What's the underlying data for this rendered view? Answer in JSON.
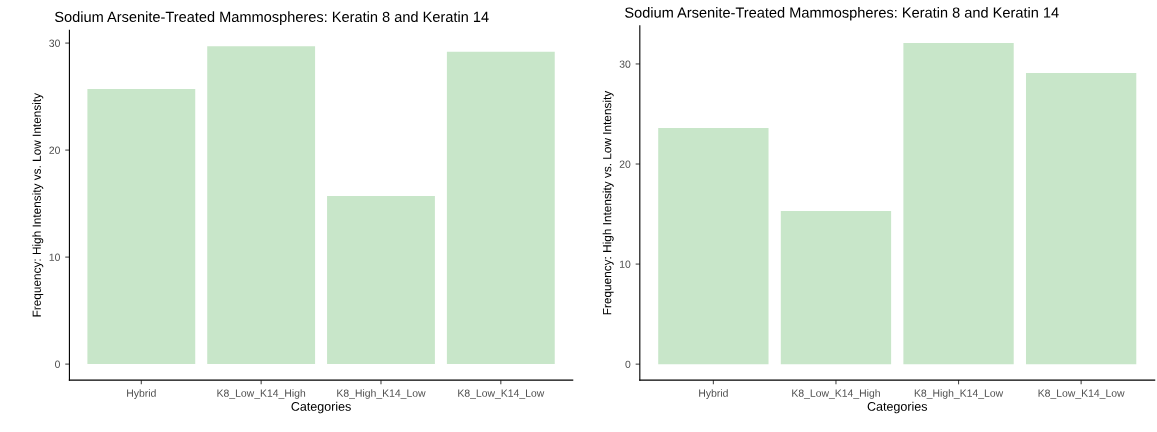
{
  "chart_data": [
    {
      "type": "bar",
      "title": "Sodium Arsenite-Treated Mammospheres: Keratin 8 and Keratin 14",
      "xlabel": "Categories",
      "ylabel": "Frequency: High Intensity vs. Low Intensity",
      "categories": [
        "Hybrid",
        "K8_Low_K14_High",
        "K8_High_K14_Low",
        "K8_Low_K14_Low"
      ],
      "values": [
        25.7,
        29.7,
        15.7,
        29.2
      ],
      "color": "#c8e6c9",
      "ylim": [
        -1.5,
        31.2
      ],
      "yticks": [
        0,
        10,
        20,
        30
      ],
      "grid": false,
      "legend": false
    },
    {
      "type": "bar",
      "title": "Sodium Arsenite-Treated Mammospheres: Keratin 8 and Keratin 14",
      "xlabel": "Categories",
      "ylabel": "Frequency: High Intensity vs. Low Intensity",
      "categories": [
        "Hybrid",
        "K8_Low_K14_High",
        "K8_High_K14_Low",
        "K8_Low_K14_Low"
      ],
      "values": [
        23.6,
        15.3,
        32.1,
        29.1
      ],
      "color": "#c8e6c9",
      "ylim": [
        -1.6,
        33.8
      ],
      "yticks": [
        0,
        10,
        20,
        30
      ],
      "grid": false,
      "legend": false
    }
  ]
}
